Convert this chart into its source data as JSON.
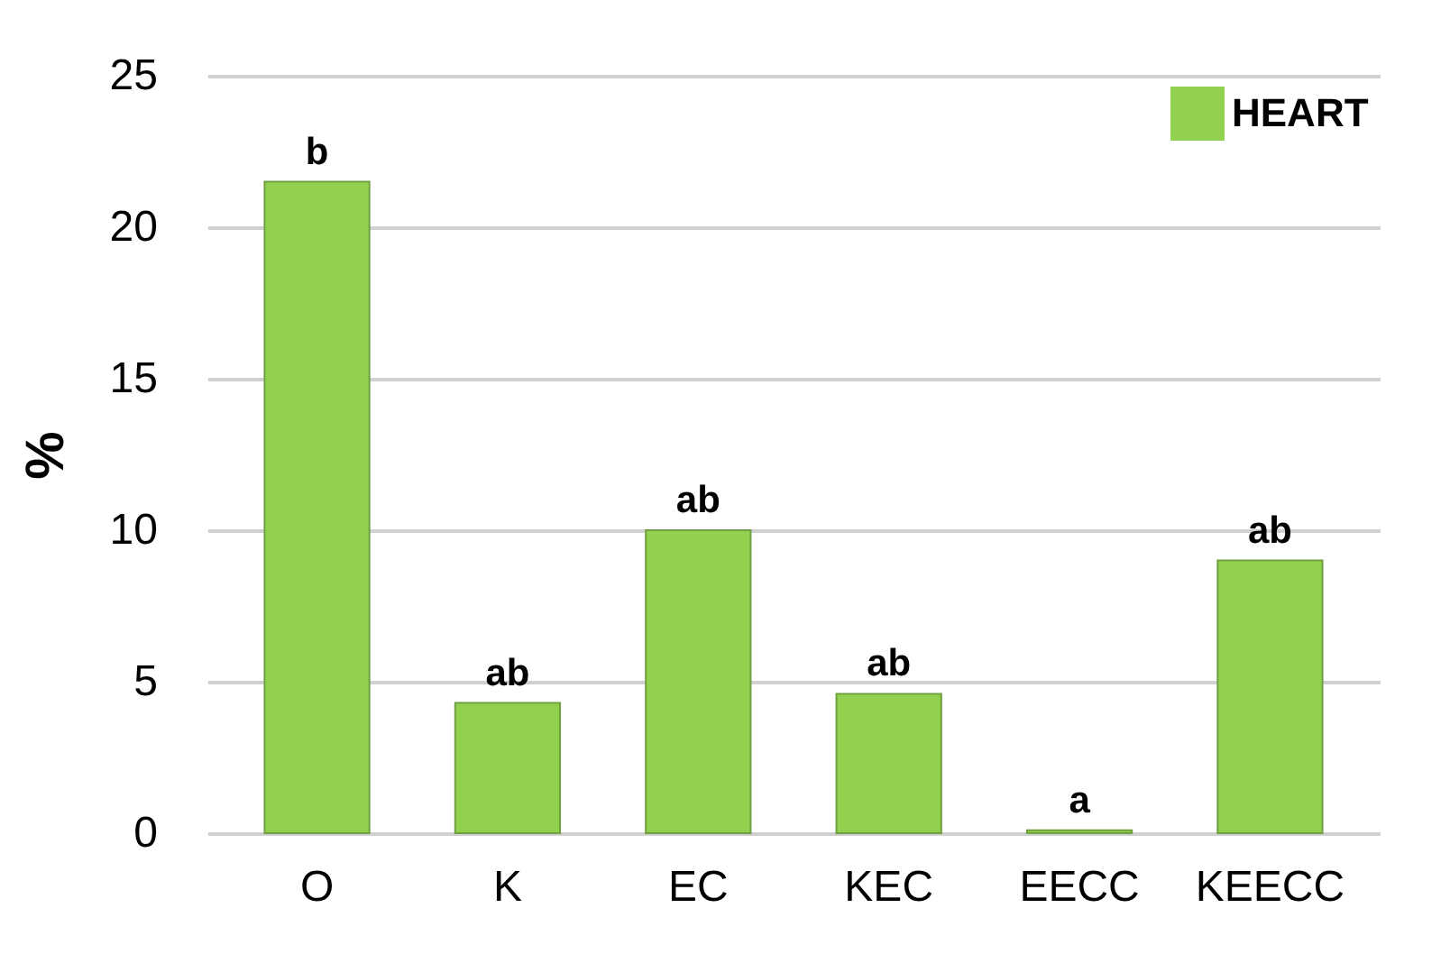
{
  "chart_data": {
    "type": "bar",
    "ylabel": "%",
    "categories": [
      "O",
      "K",
      "EC",
      "KEC",
      "EECC",
      "KEECC"
    ],
    "series": [
      {
        "name": "HEART",
        "color": "#92d050",
        "values": [
          21.5,
          4.3,
          10,
          4.6,
          0.1,
          9
        ]
      }
    ],
    "ylim": [
      0,
      25
    ],
    "yticks": [
      0,
      5,
      10,
      15,
      20,
      25
    ],
    "grid": "y",
    "legend": "top right",
    "annotations": [
      {
        "text": "b",
        "x": "O",
        "y": 21.5
      },
      {
        "text": "ab",
        "x": "K",
        "y": 4.3
      },
      {
        "text": "ab",
        "x": "EC",
        "y": 10
      },
      {
        "text": "ab",
        "x": "KEC",
        "y": 4.6
      },
      {
        "text": "a",
        "x": "EECC",
        "y": 0.1
      },
      {
        "text": "ab",
        "x": "KEECC",
        "y": 9
      }
    ]
  }
}
